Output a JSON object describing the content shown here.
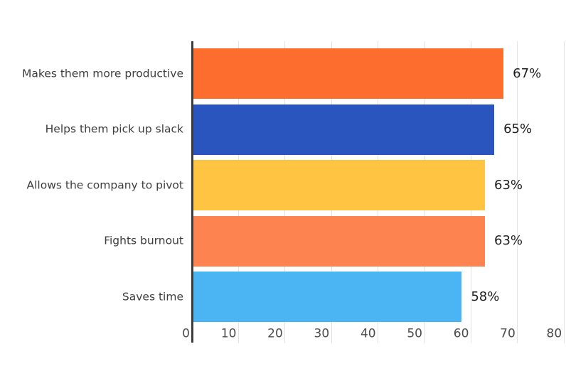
{
  "chart_data": {
    "type": "bar",
    "orientation": "horizontal",
    "title": "",
    "xlabel": "",
    "ylabel": "",
    "categories": [
      "Makes them more productive",
      "Helps them pick up slack",
      "Allows the company to pivot",
      "Fights burnout",
      "Saves time"
    ],
    "values": [
      67,
      65,
      63,
      63,
      58
    ],
    "value_labels": [
      "67%",
      "65%",
      "63%",
      "63%",
      "58%"
    ],
    "bar_colors": [
      "#fc6d2e",
      "#2a54be",
      "#ffc441",
      "#fd8350",
      "#4bb4f2"
    ],
    "xlim": [
      0,
      80
    ],
    "x_ticks": [
      0,
      10,
      20,
      30,
      40,
      50,
      60,
      70,
      80
    ],
    "x_tick_labels": [
      "0",
      "10",
      "20",
      "30",
      "40",
      "50",
      "60",
      "70",
      "80"
    ],
    "grid": true,
    "legend": false
  },
  "styles": {
    "background": "#ffffff",
    "gridline_color": "#e2e2e2",
    "axis_color": "#3c3c3c",
    "tick_text_color": "#4d4d4d",
    "category_text_color": "#3d3d3d",
    "value_text_color": "#1e1e1e"
  }
}
